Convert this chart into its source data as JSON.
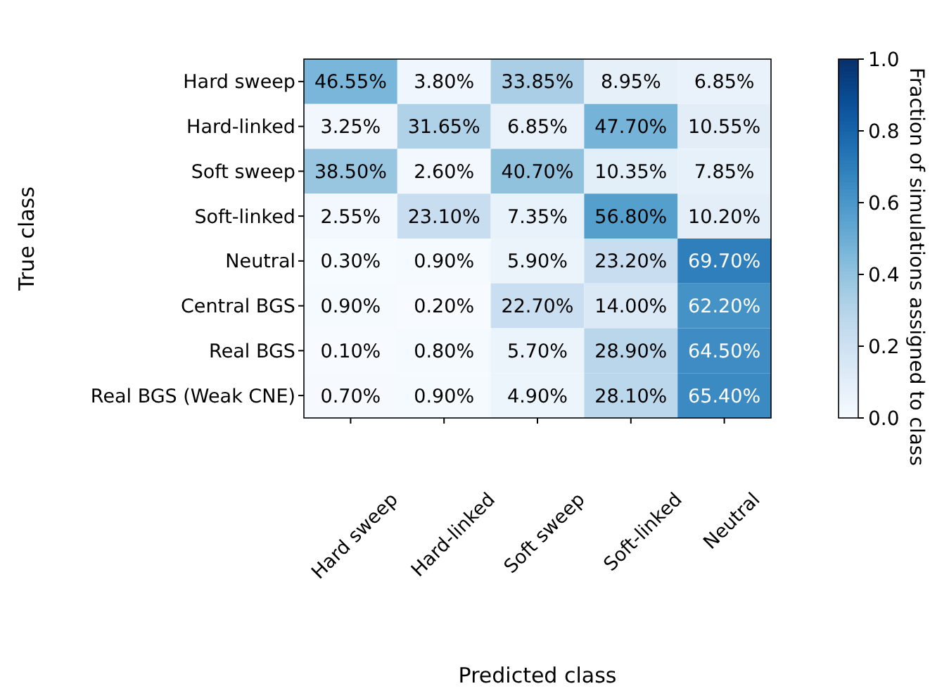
{
  "chart_data": {
    "type": "heatmap",
    "xlabel": "Predicted class",
    "ylabel": "True class",
    "clabel": "Fraction of simulations assigned to class",
    "categories": [
      "Hard sweep",
      "Hard-linked",
      "Soft sweep",
      "Soft-linked",
      "Neutral"
    ],
    "y_categories": [
      "Hard sweep",
      "Hard-linked",
      "Soft sweep",
      "Soft-linked",
      "Neutral",
      "Central BGS",
      "Real BGS",
      "Real BGS (Weak CNE)"
    ],
    "cells": [
      [
        0.4655,
        0.038,
        0.3385,
        0.0895,
        0.0685
      ],
      [
        0.0325,
        0.3165,
        0.0685,
        0.477,
        0.1055
      ],
      [
        0.385,
        0.026,
        0.407,
        0.1035,
        0.0785
      ],
      [
        0.0255,
        0.231,
        0.0735,
        0.568,
        0.102
      ],
      [
        0.003,
        0.009,
        0.059,
        0.232,
        0.697
      ],
      [
        0.009,
        0.002,
        0.227,
        0.14,
        0.622
      ],
      [
        0.001,
        0.008,
        0.057,
        0.289,
        0.645
      ],
      [
        0.007,
        0.009,
        0.049,
        0.281,
        0.654
      ]
    ],
    "cell_labels": [
      [
        "46.55%",
        "3.80%",
        "33.85%",
        "8.95%",
        "6.85%"
      ],
      [
        "3.25%",
        "31.65%",
        "6.85%",
        "47.70%",
        "10.55%"
      ],
      [
        "38.50%",
        "2.60%",
        "40.70%",
        "10.35%",
        "7.85%"
      ],
      [
        "2.55%",
        "23.10%",
        "7.35%",
        "56.80%",
        "10.20%"
      ],
      [
        "0.30%",
        "0.90%",
        "5.90%",
        "23.20%",
        "69.70%"
      ],
      [
        "0.90%",
        "0.20%",
        "22.70%",
        "14.00%",
        "62.20%"
      ],
      [
        "0.10%",
        "0.80%",
        "5.70%",
        "28.90%",
        "64.50%"
      ],
      [
        "0.70%",
        "0.90%",
        "4.90%",
        "28.10%",
        "65.40%"
      ]
    ],
    "clim": [
      0,
      1
    ],
    "cticks": [
      {
        "value": 0,
        "label": "0.0"
      },
      {
        "value": 0.2,
        "label": "0.2"
      },
      {
        "value": 0.4,
        "label": "0.4"
      },
      {
        "value": 0.6,
        "label": "0.6"
      },
      {
        "value": 0.8,
        "label": "0.8"
      },
      {
        "value": 1,
        "label": "1.0"
      }
    ]
  }
}
